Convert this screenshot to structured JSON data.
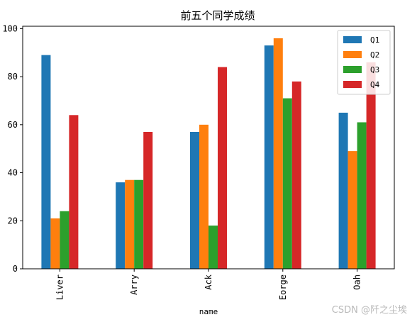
{
  "chart_data": {
    "type": "bar",
    "title": "前五个同学成绩",
    "xlabel": "name",
    "ylabel": "",
    "categories": [
      "Liver",
      "Arry",
      "Ack",
      "Eorge",
      "Oah"
    ],
    "series": [
      {
        "name": "Q1",
        "values": [
          89,
          36,
          57,
          93,
          65
        ],
        "color": "#1f77b4"
      },
      {
        "name": "Q2",
        "values": [
          21,
          37,
          60,
          96,
          49
        ],
        "color": "#ff7f0e"
      },
      {
        "name": "Q3",
        "values": [
          24,
          37,
          18,
          71,
          61
        ],
        "color": "#2ca02c"
      },
      {
        "name": "Q4",
        "values": [
          64,
          57,
          84,
          78,
          86
        ],
        "color": "#d62728"
      }
    ],
    "ylim": [
      0,
      101
    ],
    "yticks": [
      0,
      20,
      40,
      60,
      80,
      100
    ],
    "legend": "top-right",
    "grid": false
  },
  "watermark": "CSDN @阡之尘埃"
}
